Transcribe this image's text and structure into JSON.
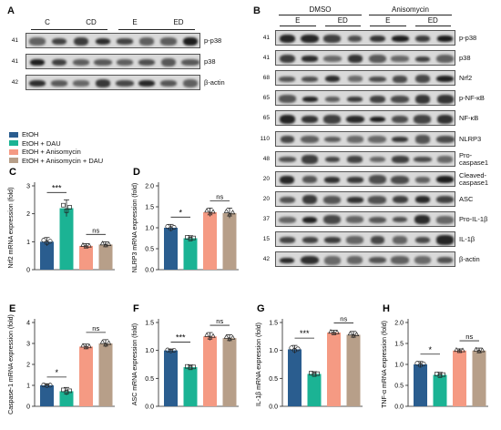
{
  "panelA": {
    "letter": "A",
    "lanes": [
      "C",
      "CD",
      "E",
      "ED"
    ],
    "rows": [
      {
        "mw": "41",
        "label": "p-p38"
      },
      {
        "mw": "41",
        "label": "p38"
      },
      {
        "mw": "42",
        "label": "β-actin"
      }
    ]
  },
  "panelB": {
    "letter": "B",
    "groups": [
      "DMSO",
      "Anisomycin"
    ],
    "lanes": [
      "E",
      "ED",
      "E",
      "ED"
    ],
    "rows": [
      {
        "mw": "41",
        "label": "p-p38"
      },
      {
        "mw": "41",
        "label": "p38"
      },
      {
        "mw": "68",
        "label": "Nrf2"
      },
      {
        "mw": "65",
        "label": "p-NF-κB"
      },
      {
        "mw": "65",
        "label": "NF-κB"
      },
      {
        "mw": "110",
        "label": "NLRP3"
      },
      {
        "mw": "48",
        "label": "Pro-\ncaspase1"
      },
      {
        "mw": "20",
        "label": "Cleaved-\ncaspase1"
      },
      {
        "mw": "20",
        "label": "ASC"
      },
      {
        "mw": "37",
        "label": "Pro-IL-1β"
      },
      {
        "mw": "15",
        "label": "IL-1β"
      },
      {
        "mw": "42",
        "label": "β-actin"
      }
    ]
  },
  "legend": [
    {
      "name": "EtOH",
      "color": "#2a5d8f"
    },
    {
      "name": "EtOH + DAU",
      "color": "#1bb394"
    },
    {
      "name": "EtOH + Anisomycin",
      "color": "#f59a83"
    },
    {
      "name": "EtOH + Anisomycin + DAU",
      "color": "#b79f89"
    }
  ],
  "chart_data": [
    {
      "type": "bar",
      "letter": "C",
      "ylabel": "Nrf2 mRNA expression (fold)",
      "ylim": [
        0,
        3
      ],
      "yticks": [
        "0",
        "1",
        "2",
        "3"
      ],
      "values": [
        1.0,
        2.2,
        0.85,
        0.9
      ],
      "err": [
        0.15,
        0.3,
        0.08,
        0.1
      ],
      "sig": [
        "***",
        "ns"
      ]
    },
    {
      "type": "bar",
      "letter": "D",
      "ylabel": "NLRP3 mRNA expression (fold)",
      "ylim": [
        0,
        2.0
      ],
      "yticks": [
        "0.0",
        "0.5",
        "1.0",
        "1.5",
        "2.0"
      ],
      "values": [
        1.0,
        0.75,
        1.37,
        1.35
      ],
      "err": [
        0.08,
        0.06,
        0.1,
        0.12
      ],
      "sig": [
        "*",
        "ns"
      ]
    },
    {
      "type": "bar",
      "letter": "E",
      "ylabel": "Caspase-1 mRNA expression (fold)",
      "ylim": [
        0,
        4
      ],
      "yticks": [
        "0",
        "1",
        "2",
        "3",
        "4"
      ],
      "values": [
        1.0,
        0.72,
        2.85,
        3.0
      ],
      "err": [
        0.05,
        0.18,
        0.12,
        0.18
      ],
      "sig": [
        "*",
        "ns"
      ]
    },
    {
      "type": "bar",
      "letter": "F",
      "ylabel": "ASC mRNA expression (fold)",
      "ylim": [
        0,
        1.5
      ],
      "yticks": [
        "0.0",
        "0.5",
        "1.0",
        "1.5"
      ],
      "values": [
        1.0,
        0.7,
        1.25,
        1.22
      ],
      "err": [
        0.02,
        0.04,
        0.07,
        0.06
      ],
      "sig": [
        "***",
        "ns"
      ]
    },
    {
      "type": "bar",
      "letter": "G",
      "ylabel": "IL-1β mRNA expression (fold)",
      "ylim": [
        0,
        1.5
      ],
      "yticks": [
        "0.0",
        "0.5",
        "1.0",
        "1.5"
      ],
      "values": [
        1.02,
        0.58,
        1.32,
        1.28
      ],
      "err": [
        0.07,
        0.04,
        0.04,
        0.06
      ],
      "sig": [
        "***",
        "ns"
      ]
    },
    {
      "type": "bar",
      "letter": "H",
      "ylabel": "TNF-α mRNA expression (fold)",
      "ylim": [
        0,
        2.0
      ],
      "yticks": [
        "0.0",
        "0.5",
        "1.0",
        "1.5",
        "2.0"
      ],
      "values": [
        1.0,
        0.75,
        1.33,
        1.33
      ],
      "err": [
        0.07,
        0.06,
        0.04,
        0.06
      ],
      "sig": [
        "*",
        "ns"
      ]
    }
  ]
}
